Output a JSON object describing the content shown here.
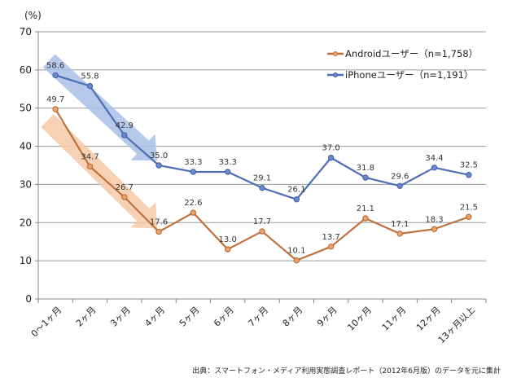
{
  "chart_data": {
    "type": "line",
    "title": "",
    "ylabel": "(%)",
    "xlabel": "",
    "ylim": [
      0,
      70
    ],
    "yticks": [
      0,
      10,
      20,
      30,
      40,
      50,
      60,
      70
    ],
    "grid": true,
    "legend_position": "top-right",
    "categories": [
      "0〜1ヶ月",
      "2ヶ月",
      "3ヶ月",
      "4ヶ月",
      "5ヶ月",
      "6ヶ月",
      "7ヶ月",
      "8ヶ月",
      "9ヶ月",
      "10ヶ月",
      "11ヶ月",
      "12ヶ月",
      "13ヶ月以上"
    ],
    "series": [
      {
        "name": "Androidユーザー（n=1,758）",
        "color": "#C0703A",
        "values": [
          49.7,
          34.7,
          26.7,
          17.6,
          22.6,
          13.0,
          17.7,
          10.1,
          13.7,
          21.1,
          17.1,
          18.3,
          21.5
        ],
        "labels": [
          "49.7",
          "34.7",
          "26.7",
          "17.6",
          "22.6",
          "13.0",
          "17.7",
          "10.1",
          "13.7",
          "21.1",
          "17.1",
          "18.3",
          "21.5"
        ]
      },
      {
        "name": "iPhoneユーザー（n=1,191）",
        "color": "#4F6FB5",
        "values": [
          58.6,
          55.8,
          42.9,
          35.0,
          33.3,
          33.3,
          29.1,
          26.1,
          37.0,
          31.8,
          29.6,
          34.4,
          32.5
        ],
        "labels": [
          "58.6",
          "55.8",
          "42.9",
          "35.0",
          "33.3",
          "33.3",
          "29.1",
          "26.1",
          "37.0",
          "31.8",
          "29.6",
          "34.4",
          "32.5"
        ]
      }
    ],
    "annotations": [
      {
        "type": "trend-arrow",
        "series": "iPhoneユーザー（n=1,191）",
        "from_category": "0〜1ヶ月",
        "to_category": "4ヶ月",
        "color": "#A9C0E8"
      },
      {
        "type": "trend-arrow",
        "series": "Androidユーザー（n=1,758）",
        "from_category": "0〜1ヶ月",
        "to_category": "4ヶ月",
        "color": "#F6C9A6"
      }
    ],
    "source": "出典：スマートフォン・メディア利用実態調査レポート（2012年6月版）のデータを元に集計"
  }
}
